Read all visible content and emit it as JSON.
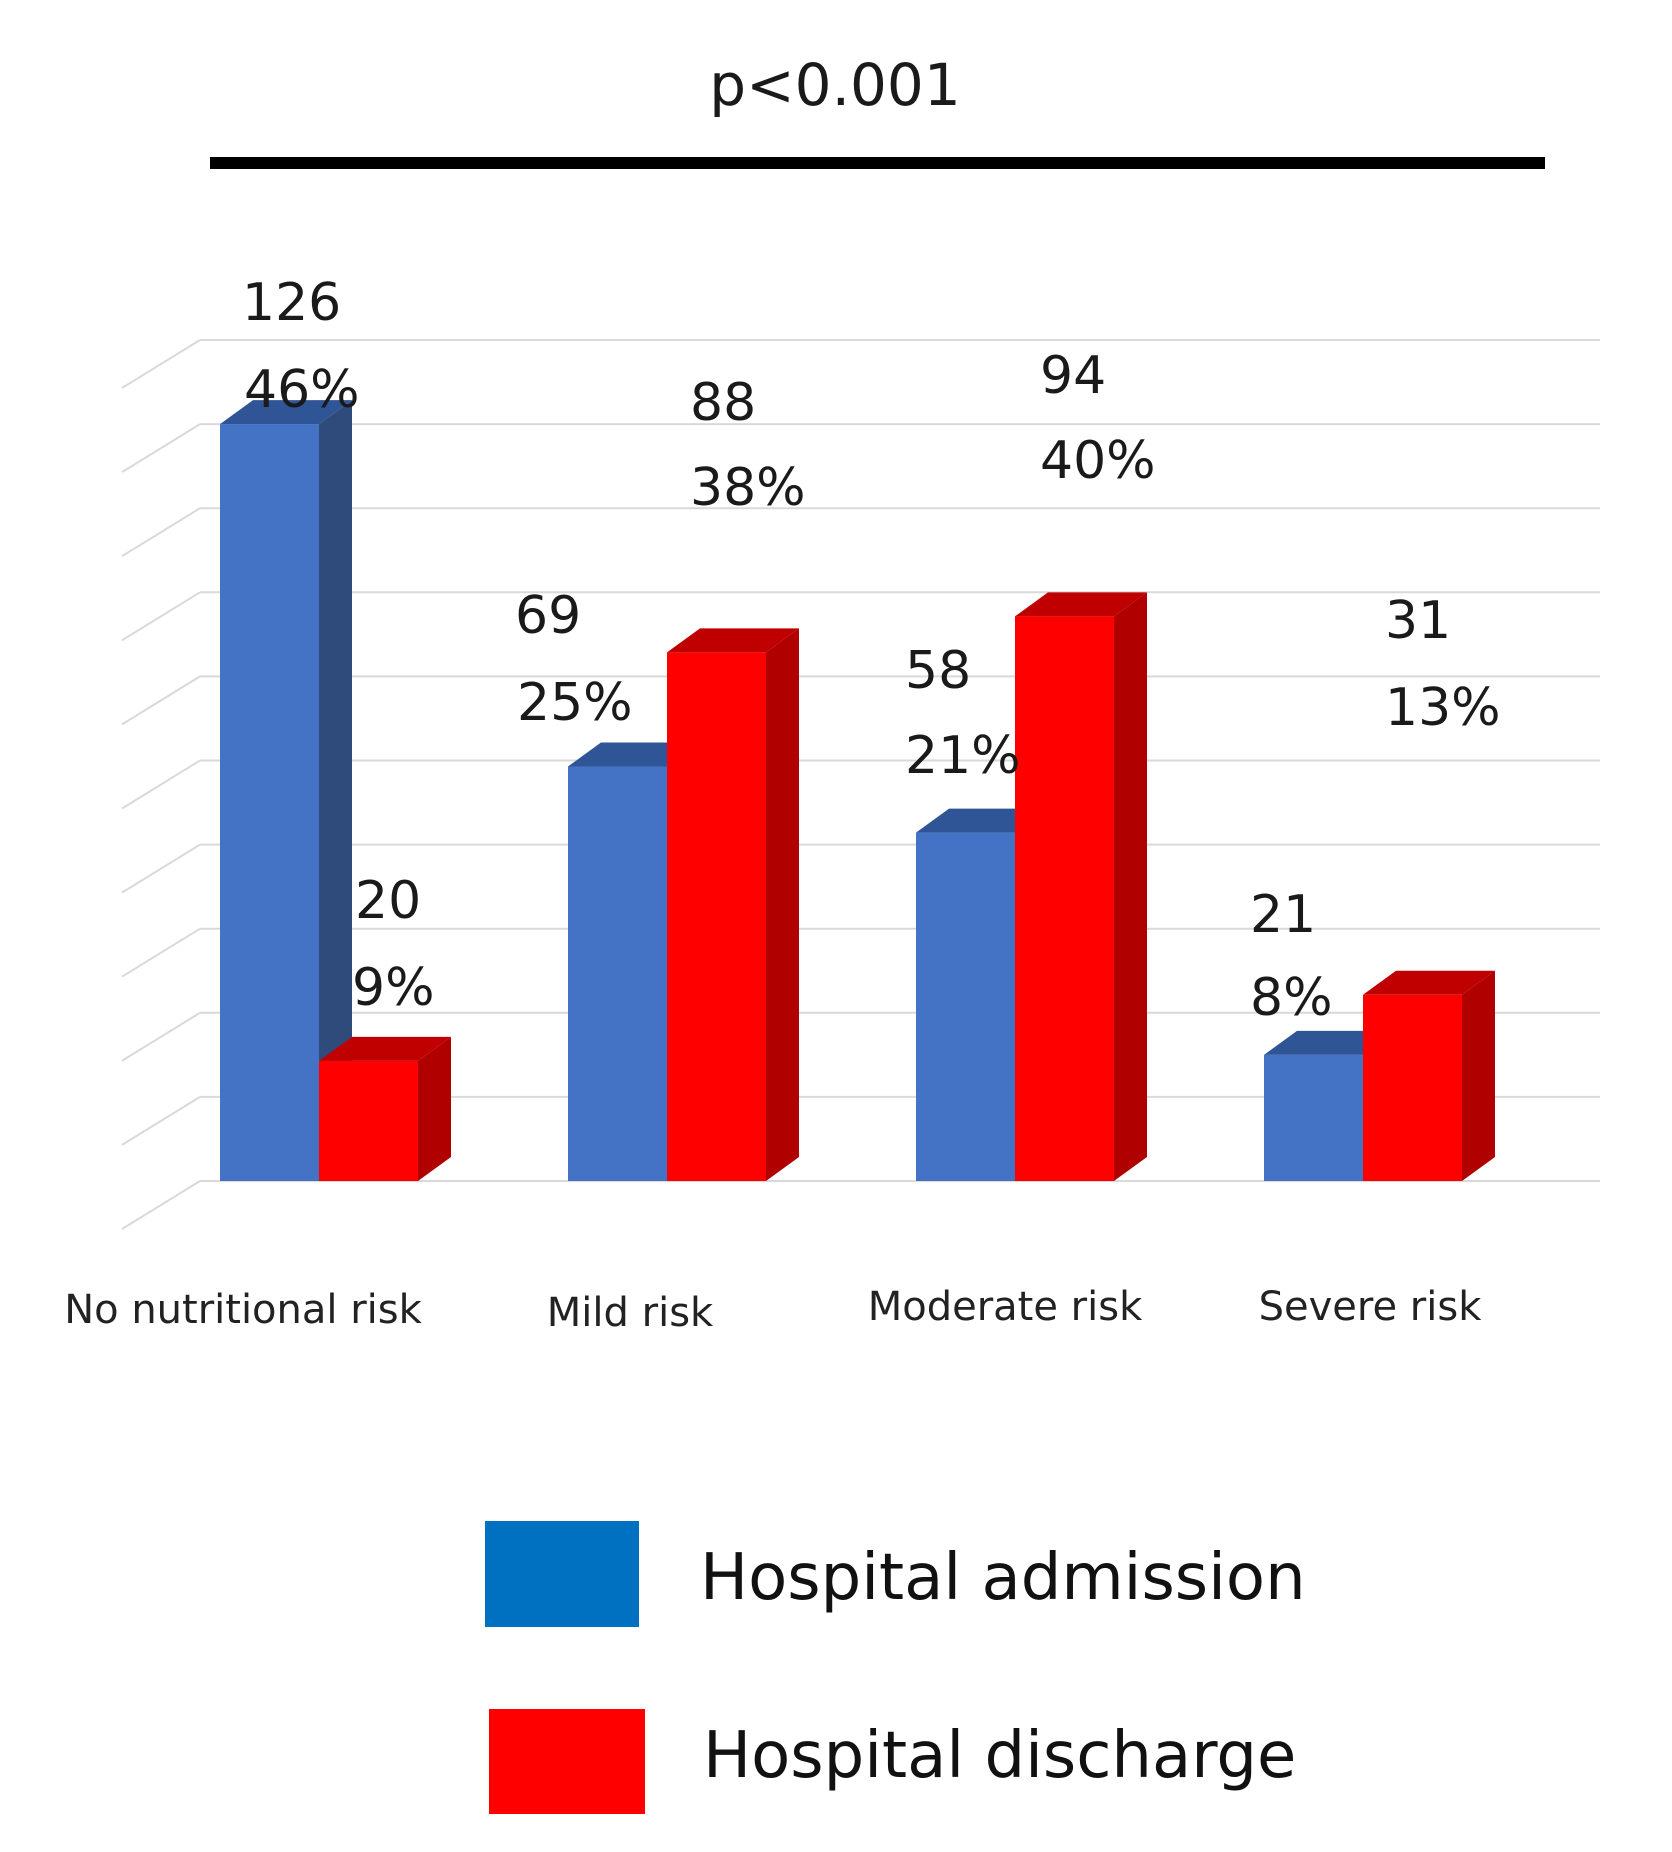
{
  "chart_data": {
    "type": "bar",
    "title": "p<0.001",
    "xlabel": "",
    "ylabel": "",
    "ylim": [
      0,
      140
    ],
    "grid": true,
    "legend_position": "bottom",
    "categories": [
      "No nutritional risk",
      "Mild risk",
      "Moderate risk",
      "Severe risk"
    ],
    "series": [
      {
        "name": "Hospital admission",
        "color": "#4472C4",
        "side_color": "#2F4B7C",
        "legend_color": "#0070C0",
        "values": [
          126,
          69,
          58,
          21
        ],
        "percent_labels": [
          "46%",
          "25%",
          "21%",
          "8%"
        ],
        "count_labels": [
          "126",
          "69",
          "58",
          "21"
        ]
      },
      {
        "name": "Hospital discharge",
        "color": "#FF0000",
        "side_color": "#B00000",
        "legend_color": "#FF0000",
        "values": [
          20,
          88,
          94,
          31
        ],
        "percent_labels": [
          "9%",
          "38%",
          "40%",
          "13%"
        ],
        "count_labels": [
          "20",
          "88",
          "94",
          "31"
        ]
      }
    ]
  }
}
